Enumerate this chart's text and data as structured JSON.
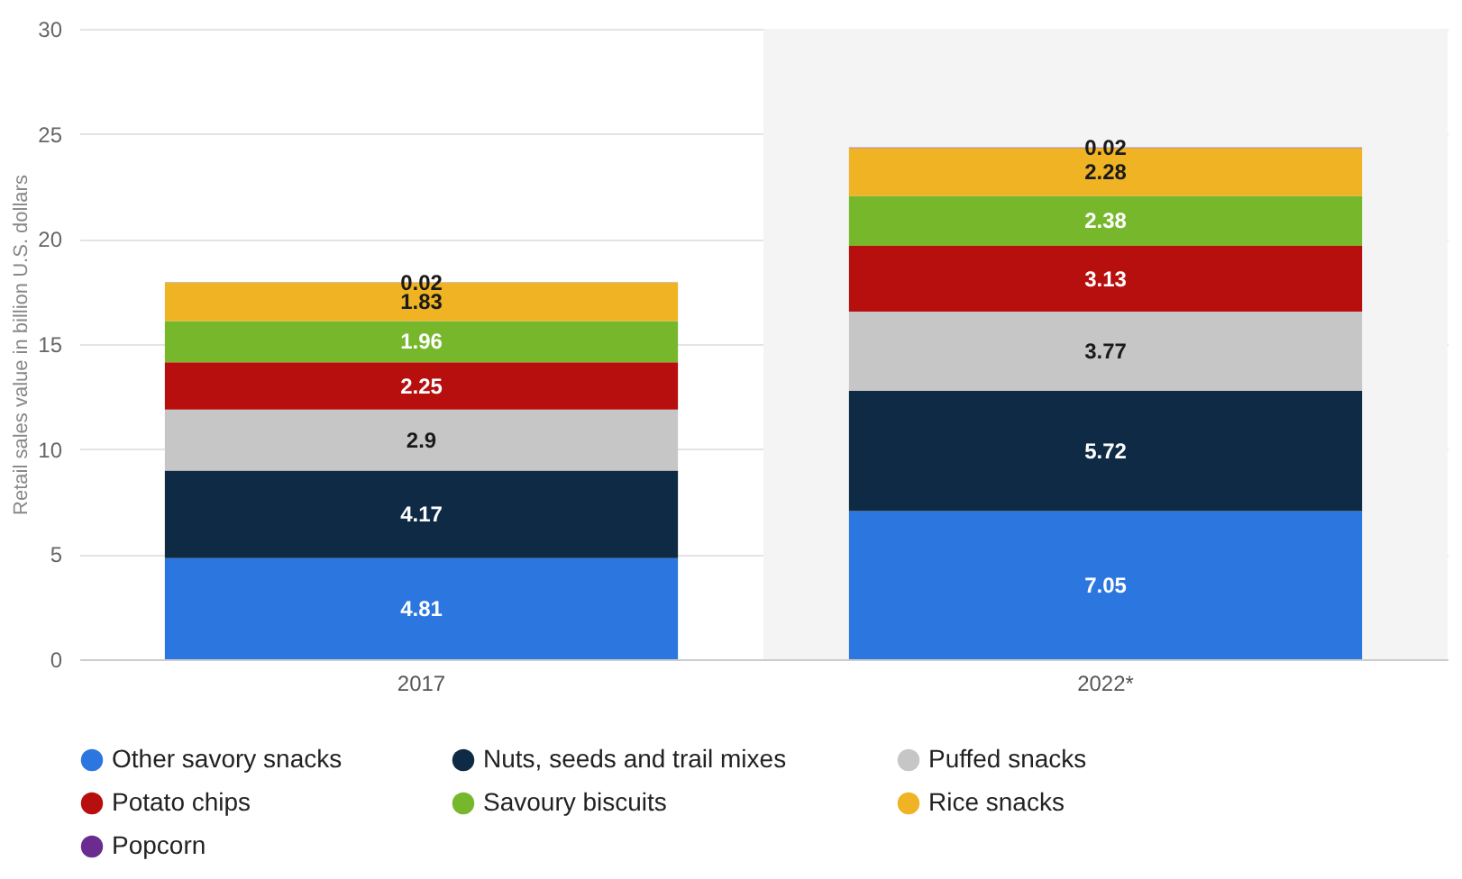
{
  "chart_data": {
    "type": "bar",
    "stacked": true,
    "ylabel": "Retail sales value in billion U.S. dollars",
    "categories": [
      "2017",
      "2022*"
    ],
    "series": [
      {
        "name": "Other savory snacks",
        "color": "#2b76df",
        "values": [
          4.81,
          7.05
        ]
      },
      {
        "name": "Nuts, seeds and trail mixes",
        "color": "#0e2a45",
        "values": [
          4.17,
          5.72
        ]
      },
      {
        "name": "Puffed snacks",
        "color": "#c6c6c6",
        "values": [
          2.9,
          3.77
        ]
      },
      {
        "name": "Potato chips",
        "color": "#b70e0e",
        "values": [
          2.25,
          3.13
        ]
      },
      {
        "name": "Savoury biscuits",
        "color": "#77b72b",
        "values": [
          1.96,
          2.38
        ]
      },
      {
        "name": "Rice snacks",
        "color": "#efb324",
        "values": [
          1.83,
          2.28
        ]
      },
      {
        "name": "Popcorn",
        "color": "#6b2c90",
        "values": [
          0.02,
          0.02
        ]
      }
    ],
    "ylim": [
      0,
      30
    ],
    "yticks": [
      0,
      5,
      10,
      15,
      20,
      25,
      30
    ],
    "grid": "y",
    "data_labels": true,
    "legend": "bottom",
    "bands": [
      {
        "axis": "x",
        "from": "2022*",
        "to": "2022*",
        "color": "#f4f4f4"
      }
    ]
  }
}
